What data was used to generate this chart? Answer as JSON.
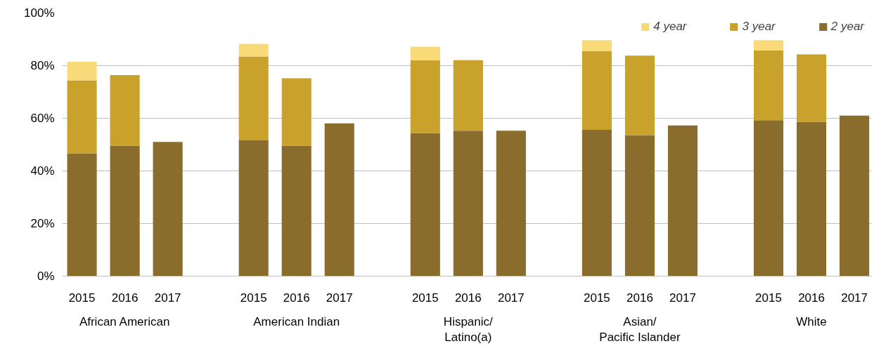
{
  "chart_data": {
    "type": "bar",
    "stacked": true,
    "categories": [
      "2015",
      "2016",
      "2017",
      "2015",
      "2016",
      "2017",
      "2015",
      "2016",
      "2017",
      "2015",
      "2016",
      "2017",
      "2015",
      "2016",
      "2017"
    ],
    "series": [
      {
        "name": "2 year",
        "color": "#8a6d2c",
        "values": [
          46.7,
          49.6,
          51.0,
          51.6,
          49.6,
          58.1,
          54.4,
          55.3,
          55.3,
          55.6,
          53.6,
          57.3,
          59.3,
          58.7,
          61.0
        ]
      },
      {
        "name": "3 year",
        "color": "#c9a22b",
        "values": [
          27.7,
          26.8,
          null,
          31.9,
          25.6,
          null,
          27.7,
          26.8,
          null,
          29.9,
          30.2,
          null,
          26.5,
          25.6,
          null
        ]
      },
      {
        "name": "4 year",
        "color": "#f8da78",
        "values": [
          7.1,
          null,
          null,
          4.8,
          null,
          null,
          5.1,
          null,
          null,
          4.2,
          null,
          null,
          3.9,
          null,
          null
        ]
      }
    ],
    "annotations": [
      "African American",
      "American Indian",
      "Hispanic/\nLatino(a)",
      "Asian/\nPacific Islander",
      "White"
    ],
    "ylim": [
      0,
      100
    ],
    "yticks": [
      {
        "value": 0,
        "label": "0%"
      },
      {
        "value": 20,
        "label": "20%"
      },
      {
        "value": 40,
        "label": "40%"
      },
      {
        "value": 60,
        "label": "60%"
      },
      {
        "value": 80,
        "label": "80%"
      },
      {
        "value": 100,
        "label": "100%"
      }
    ],
    "grid": "y",
    "legend": "top right"
  }
}
